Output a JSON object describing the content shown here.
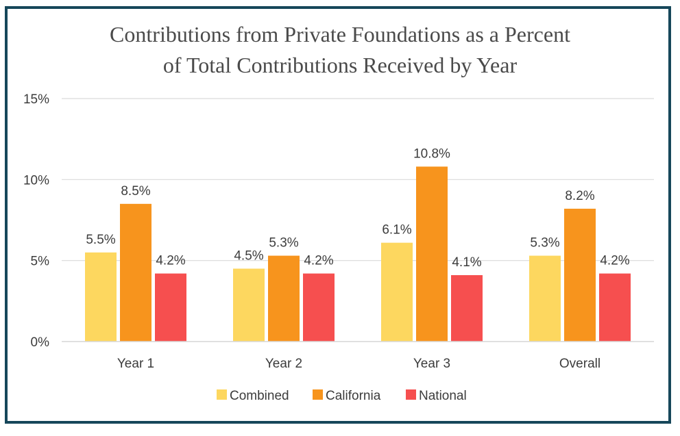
{
  "chart_data": {
    "type": "bar",
    "title_line1": "Contributions from Private Foundations as a Percent",
    "title_line2": "of Total Contributions Received by Year",
    "categories": [
      "Year 1",
      "Year 2",
      "Year 3",
      "Overall"
    ],
    "series": [
      {
        "name": "Combined",
        "color": "#fdd75f",
        "values": [
          5.5,
          4.5,
          6.1,
          5.3
        ],
        "labels": [
          "5.5%",
          "4.5%",
          "6.1%",
          "5.3%"
        ]
      },
      {
        "name": "California",
        "color": "#f7941d",
        "values": [
          8.5,
          5.3,
          10.8,
          8.2
        ],
        "labels": [
          "8.5%",
          "5.3%",
          "10.8%",
          "8.2%"
        ]
      },
      {
        "name": "National",
        "color": "#f64f4f",
        "values": [
          4.2,
          4.2,
          4.1,
          4.2
        ],
        "labels": [
          "4.2%",
          "4.2%",
          "4.1%",
          "4.2%"
        ]
      }
    ],
    "yticks": [
      0,
      5,
      10,
      15
    ],
    "ytick_labels": [
      "0%",
      "5%",
      "10%",
      "15%"
    ],
    "ylim": [
      0,
      15
    ],
    "grid": true,
    "legend_position": "bottom",
    "xlabel": "",
    "ylabel": ""
  },
  "colors": {
    "border": "#16475a",
    "gridline": "#d9d9d9",
    "text": "#3c3c3c",
    "title": "#4a4a4a"
  }
}
